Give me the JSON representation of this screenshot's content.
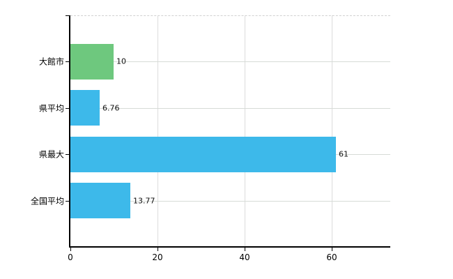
{
  "chart_data": {
    "type": "bar",
    "orientation": "horizontal",
    "title": "",
    "xlabel": "",
    "ylabel": "",
    "categories": [
      "大館市",
      "県平均",
      "県最大",
      "全国平均"
    ],
    "values": [
      10,
      6.76,
      61,
      13.77
    ],
    "value_labels": [
      "10",
      "6.76",
      "61",
      "13.77"
    ],
    "bar_colors": [
      "#6ec87e",
      "#3db9ea",
      "#3db9ea",
      "#3db9ea"
    ],
    "xlim": [
      0,
      73.5
    ],
    "x_ticks": [
      0,
      20,
      40,
      60
    ],
    "x_tick_labels": [
      "0",
      "20",
      "40",
      "60"
    ],
    "grid": "on",
    "legend": "none"
  },
  "colors": {
    "highlight_bar": "#6ec87e",
    "default_bar": "#3db9ea",
    "axis": "#000000",
    "horizontal_gridline": "#d6dbd6",
    "vertical_gridline": "#dcdcdc",
    "top_border": "#d0d0d0",
    "text": "#000000",
    "background": "#ffffff"
  }
}
